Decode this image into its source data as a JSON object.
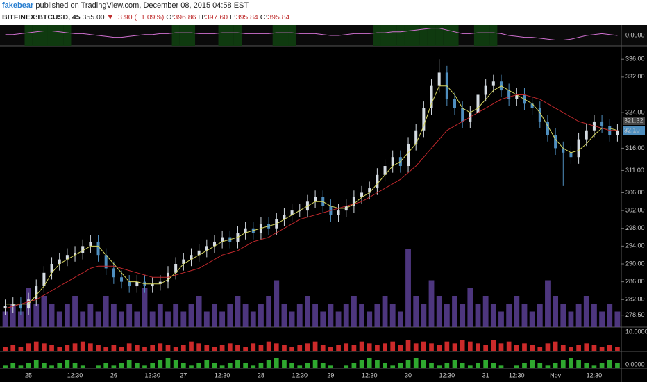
{
  "header": {
    "author": "fakebear",
    "published": "published on TradingView.com, December 08, 2015 04:58 EST",
    "symbol": "BITFINEX:BTCUSD, 45",
    "last": "355.00",
    "arrow": "▼",
    "change": "−3.90 (−1.09%)",
    "o_label": "O:",
    "o": "396.86",
    "h_label": "H:",
    "h": "397.60",
    "l_label": "L:",
    "l": "395.84",
    "c_label": "C:",
    "c": "395.84"
  },
  "chart_data": {
    "type": "candlestick",
    "categories": [
      null,
      null,
      null,
      "25",
      null,
      null,
      null,
      null,
      null,
      "12:30",
      null,
      null,
      null,
      null,
      "26",
      null,
      null,
      null,
      null,
      "12:30",
      null,
      null,
      null,
      "27",
      null,
      null,
      null,
      null,
      "12:30",
      null,
      null,
      null,
      null,
      "28",
      null,
      null,
      null,
      null,
      "12:30",
      null,
      null,
      null,
      "29",
      null,
      null,
      null,
      null,
      "12:30",
      null,
      null,
      null,
      null,
      "30",
      null,
      null,
      null,
      null,
      "12:30",
      null,
      null,
      null,
      null,
      "31",
      null,
      null,
      null,
      "12:30",
      null,
      null,
      null,
      null,
      "Nov",
      null,
      null,
      null,
      null,
      "12:30",
      null,
      null,
      null
    ],
    "open": [
      280,
      280.5,
      281,
      280,
      282,
      285,
      288,
      290,
      291,
      292,
      292.5,
      294,
      295,
      292,
      289,
      287,
      286,
      285,
      286,
      285,
      285.5,
      286,
      288,
      290,
      291,
      292,
      293,
      294,
      295,
      296,
      295,
      297,
      298,
      297,
      299,
      298,
      300,
      301,
      302,
      302,
      304,
      305,
      303,
      301,
      302,
      303,
      305,
      306,
      307,
      310,
      312,
      314,
      312,
      317,
      320,
      325,
      330,
      333,
      327,
      325,
      322,
      324,
      328,
      330,
      331,
      329,
      327,
      328,
      326,
      325,
      322,
      319,
      316,
      315,
      314,
      318,
      320,
      322,
      321,
      319
    ],
    "high": [
      282,
      282.5,
      282.5,
      283.5,
      286.5,
      289.5,
      291.5,
      292.5,
      293.5,
      294,
      295.5,
      296.5,
      296.5,
      293.5,
      290.5,
      288.5,
      287.5,
      287.5,
      287.5,
      287,
      287.5,
      289.5,
      291.5,
      292.5,
      293.5,
      294.5,
      295.5,
      296.5,
      297.5,
      297.5,
      298.5,
      299.5,
      299.5,
      300.5,
      300.5,
      301.5,
      302.5,
      303.5,
      303.5,
      305.5,
      306.5,
      306.5,
      304.5,
      303.5,
      304.5,
      306.5,
      307.5,
      308.5,
      311.5,
      313.5,
      315.5,
      315.5,
      318.5,
      321.5,
      326.5,
      331.5,
      336,
      334.5,
      328.5,
      326.5,
      325.5,
      329.5,
      331.5,
      332.5,
      332.5,
      330.5,
      329.5,
      329.5,
      327.5,
      326.5,
      323.5,
      320.5,
      317.5,
      316.5,
      319.5,
      321.5,
      323.5,
      323.5,
      322.5,
      321.5
    ],
    "low": [
      278.5,
      279,
      278.5,
      278.5,
      280.5,
      283.5,
      286.5,
      288.5,
      289.5,
      290.5,
      291,
      292.5,
      290.5,
      287.5,
      285.5,
      284.5,
      283.5,
      283.5,
      283.5,
      283.5,
      284,
      284.5,
      286.5,
      288.5,
      289.5,
      290.5,
      291.5,
      292.5,
      293.5,
      293.5,
      293.5,
      295.5,
      295.5,
      295.5,
      296.5,
      296.5,
      298.5,
      299.5,
      300.5,
      300.5,
      302.5,
      301.5,
      299.5,
      299.5,
      300.5,
      301.5,
      303.5,
      304.5,
      305.5,
      308.5,
      310.5,
      310.5,
      310.5,
      315.5,
      318.5,
      323.5,
      328.5,
      325.5,
      323.5,
      320.5,
      320.5,
      322.5,
      326.5,
      328.5,
      327.5,
      325.5,
      325.5,
      324.5,
      323.5,
      320.5,
      317.5,
      314.5,
      307.5,
      312.5,
      312.5,
      316.5,
      318.5,
      319.5,
      317.5,
      317.5
    ],
    "close": [
      280.5,
      281,
      280,
      282,
      285,
      288,
      290,
      291,
      292,
      292.5,
      294,
      295,
      292,
      289,
      287,
      286,
      285,
      286,
      285,
      285.5,
      286,
      288,
      290,
      291,
      292,
      293,
      294,
      295,
      296,
      295,
      297,
      298,
      297,
      299,
      298,
      300,
      301,
      302,
      302,
      304,
      305,
      303,
      301,
      302,
      303,
      305,
      306,
      307,
      310,
      312,
      314,
      312,
      317,
      320,
      325,
      330,
      333,
      327,
      325,
      322,
      324,
      328,
      330,
      331,
      329,
      327,
      328,
      326,
      325,
      322,
      319,
      316,
      315,
      314,
      318,
      320,
      322,
      321,
      319,
      320
    ],
    "up_color": "#d4dbe2",
    "down_color": "#4f8fbf",
    "ylim": [
      275.8,
      339
    ],
    "yticks": [
      {
        "value": 336,
        "label": "336.00"
      },
      {
        "value": 332,
        "label": "332.00"
      },
      {
        "value": 324,
        "label": "324.00"
      },
      {
        "value": 316,
        "label": "316.00"
      },
      {
        "value": 311,
        "label": "311.00"
      },
      {
        "value": 306,
        "label": "306.00"
      },
      {
        "value": 302,
        "label": "302.00"
      },
      {
        "value": 298,
        "label": "298.00"
      },
      {
        "value": 294,
        "label": "294.00"
      },
      {
        "value": 290,
        "label": "290.00"
      },
      {
        "value": 286,
        "label": "286.00"
      },
      {
        "value": 282,
        "label": "282.00"
      },
      {
        "value": 278.5,
        "label": "278.50"
      }
    ],
    "series": [
      {
        "color": "#d8d860",
        "values": [
          281,
          281,
          281,
          281,
          283,
          285,
          288,
          290,
          291,
          292,
          293,
          294,
          294,
          292,
          290,
          288,
          286,
          286,
          285.5,
          285.5,
          285.5,
          286.5,
          288,
          290,
          291,
          292,
          293,
          294,
          295,
          295.5,
          296,
          297,
          297.5,
          298,
          298.5,
          299,
          300,
          301,
          302,
          303,
          304,
          304,
          303,
          302.5,
          302.5,
          303.5,
          305,
          306,
          308,
          310,
          312,
          313,
          315,
          317,
          321,
          326,
          330,
          330,
          328,
          325,
          324,
          325,
          327,
          329,
          330,
          329,
          328,
          327,
          326,
          324,
          321,
          318,
          316,
          315,
          315.5,
          317,
          319,
          320.5,
          320.5,
          320
        ]
      },
      {
        "color": "#c0282c",
        "values": [
          280,
          280.5,
          281,
          281.5,
          282,
          283,
          284,
          285,
          286,
          287,
          288,
          289,
          289.5,
          289.5,
          289.5,
          289,
          288.5,
          288,
          287.5,
          287,
          287,
          287,
          287.5,
          288,
          288.5,
          289,
          290,
          291,
          292,
          292.5,
          293,
          294,
          295,
          295.5,
          296,
          297,
          298,
          299,
          300,
          300.5,
          301,
          301.5,
          302,
          302.5,
          303,
          303.5,
          304,
          305,
          306,
          307,
          308,
          309,
          310.5,
          312,
          314,
          316,
          318,
          320,
          321,
          322,
          323,
          324,
          325,
          326,
          327,
          327.5,
          328,
          328,
          327.5,
          327,
          326,
          325,
          324,
          323,
          322,
          321.5,
          321,
          320.5,
          320,
          320
        ]
      }
    ],
    "price_tags": [
      "321.32",
      "32.10"
    ],
    "volume": {
      "color": "#5b3f94",
      "ylim": [
        0,
        36
      ],
      "values": [
        2,
        3,
        2,
        5,
        3,
        4,
        3,
        2,
        3,
        4,
        2,
        3,
        2,
        4,
        3,
        2,
        3,
        2,
        5,
        2,
        3,
        2,
        3,
        2,
        3,
        4,
        2,
        3,
        2,
        3,
        4,
        3,
        2,
        3,
        4,
        6,
        3,
        2,
        3,
        4,
        3,
        2,
        3,
        2,
        3,
        4,
        3,
        2,
        3,
        4,
        3,
        2,
        10,
        4,
        3,
        6,
        4,
        3,
        4,
        3,
        5,
        3,
        4,
        3,
        2,
        3,
        4,
        3,
        2,
        3,
        6,
        4,
        3,
        2,
        3,
        4,
        3,
        2,
        3,
        2
      ]
    },
    "oscillator": {
      "color": "#d070d0",
      "ylim": [
        -1,
        1
      ],
      "yticks": [
        {
          "value": 0,
          "label": "0.0000"
        }
      ],
      "values": [
        0.1,
        0.1,
        0.2,
        0.3,
        0.4,
        0.5,
        0.5,
        0.4,
        0.3,
        0.2,
        0.2,
        0.1,
        0,
        -0.1,
        -0.2,
        -0.2,
        -0.1,
        0,
        0.1,
        0.1,
        0.2,
        0.2,
        0.3,
        0.3,
        0.3,
        0.2,
        0.2,
        0.2,
        0.3,
        0.3,
        0.3,
        0.2,
        0.2,
        0.2,
        0.2,
        0.3,
        0.3,
        0.3,
        0.2,
        0.2,
        0.2,
        0.1,
        0,
        0,
        0.1,
        0.2,
        0.2,
        0.2,
        0.3,
        0.3,
        0.4,
        0.4,
        0.5,
        0.6,
        0.7,
        0.8,
        0.8,
        0.6,
        0.4,
        0.2,
        0.2,
        0.3,
        0.3,
        0.3,
        0.2,
        0,
        -0.1,
        -0.2,
        -0.2,
        -0.3,
        -0.4,
        -0.5,
        -0.5,
        -0.4,
        -0.2,
        0,
        0.1,
        0.2,
        0.1,
        0
      ]
    },
    "panel3": {
      "color": "#cc2a2a",
      "ylim": [
        0,
        12
      ],
      "yticks": [
        {
          "value": 10,
          "label": "10.0000"
        }
      ],
      "values": [
        2,
        3,
        2,
        4,
        5,
        4,
        3,
        2,
        3,
        4,
        5,
        4,
        3,
        2,
        3,
        2,
        4,
        3,
        2,
        3,
        4,
        3,
        2,
        3,
        5,
        4,
        3,
        2,
        3,
        4,
        3,
        2,
        4,
        3,
        5,
        4,
        3,
        2,
        3,
        4,
        5,
        3,
        2,
        3,
        4,
        3,
        5,
        4,
        3,
        4,
        5,
        3,
        6,
        4,
        5,
        4,
        3,
        5,
        4,
        6,
        5,
        4,
        3,
        6,
        4,
        5,
        3,
        4,
        3,
        2,
        4,
        5,
        3,
        2,
        3,
        4,
        3,
        2,
        3,
        2
      ]
    },
    "panel4": {
      "color": "#2fa82f",
      "ylim": [
        0,
        6
      ],
      "yticks": [
        {
          "value": 0,
          "label": "0.0000"
        }
      ],
      "values": [
        1,
        2,
        1,
        2,
        3,
        2,
        1,
        2,
        3,
        2,
        1,
        0,
        1,
        2,
        1,
        2,
        3,
        2,
        1,
        2,
        3,
        4,
        3,
        2,
        1,
        2,
        3,
        2,
        1,
        2,
        3,
        2,
        1,
        2,
        3,
        4,
        3,
        2,
        1,
        2,
        3,
        2,
        1,
        0,
        1,
        2,
        3,
        4,
        3,
        2,
        1,
        2,
        3,
        4,
        3,
        2,
        1,
        2,
        3,
        2,
        1,
        2,
        3,
        2,
        1,
        0,
        1,
        2,
        3,
        2,
        1,
        2,
        3,
        4,
        3,
        2,
        1,
        2,
        3,
        2
      ]
    }
  }
}
